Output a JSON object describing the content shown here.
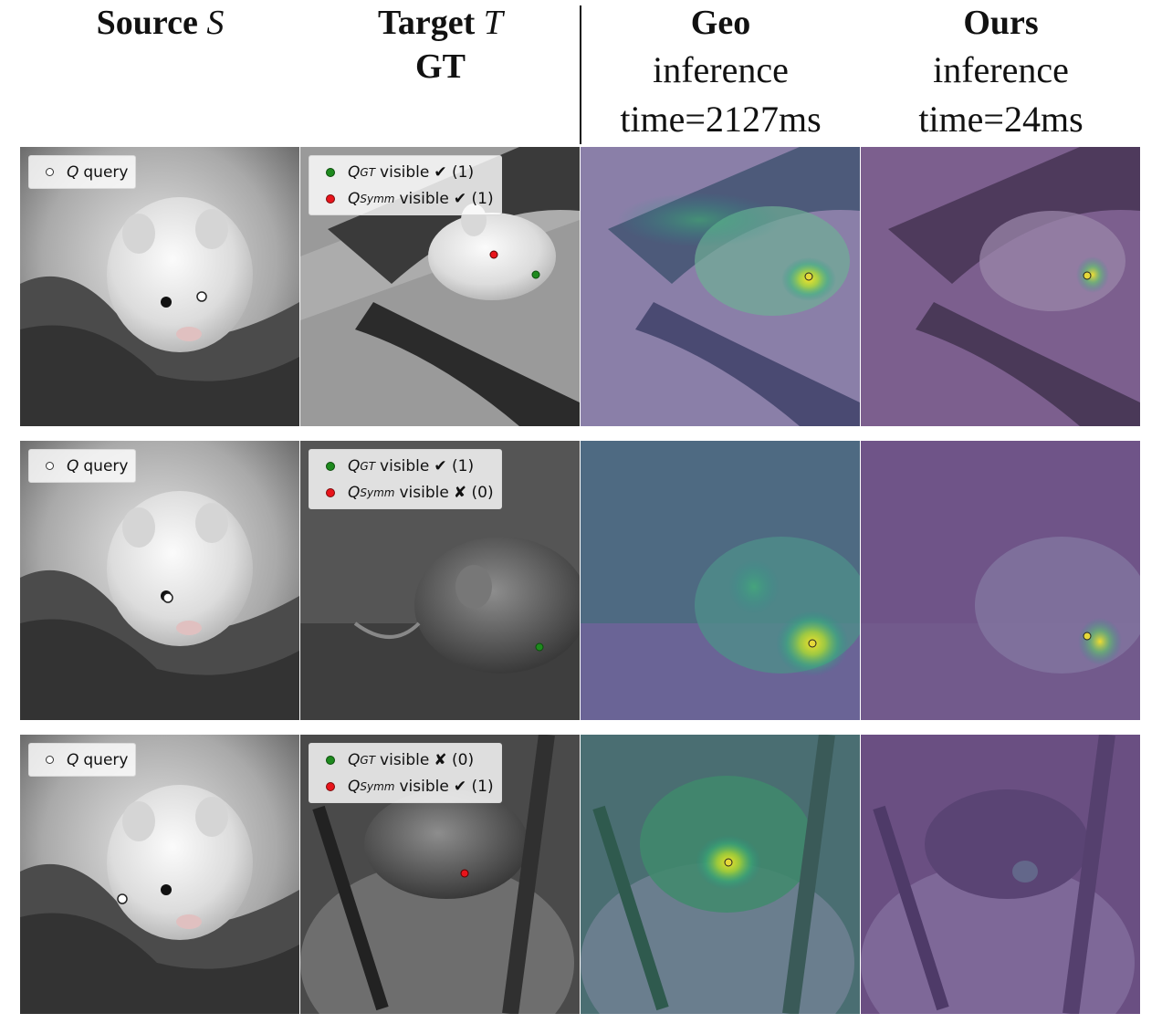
{
  "header": {
    "source": {
      "bold": "Source",
      "symbol": "S"
    },
    "target": {
      "bold": "Target",
      "symbol": "T",
      "line2": "GT"
    },
    "geo": {
      "bold": "Geo",
      "line2": "inference",
      "line3": "time=2127ms"
    },
    "ours": {
      "bold": "Ours",
      "line2": "inference",
      "line3": "time=24ms"
    }
  },
  "legend": {
    "query_symbol": "Q",
    "query_label": "query",
    "gt_symbol": "Q",
    "gt_subscript": "GT",
    "symm_symbol": "Q",
    "symm_subscript": "Symm",
    "visible_word": "visible"
  },
  "rows": [
    {
      "gt_status": "✔ (1)",
      "symm_status": "✔ (1)"
    },
    {
      "gt_status": "✔ (1)",
      "symm_status": "✘ (0)"
    },
    {
      "gt_status": "✘ (0)",
      "symm_status": "✔ (1)"
    }
  ],
  "colors": {
    "gt_marker": "#1e8a1e",
    "symm_marker": "#e8141b",
    "query_marker": "#ffffff",
    "prediction_marker": "#e6d83a",
    "heatmap_low": "#6a4f8c",
    "heatmap_mid": "#21918c",
    "heatmap_high": "#fde725"
  }
}
